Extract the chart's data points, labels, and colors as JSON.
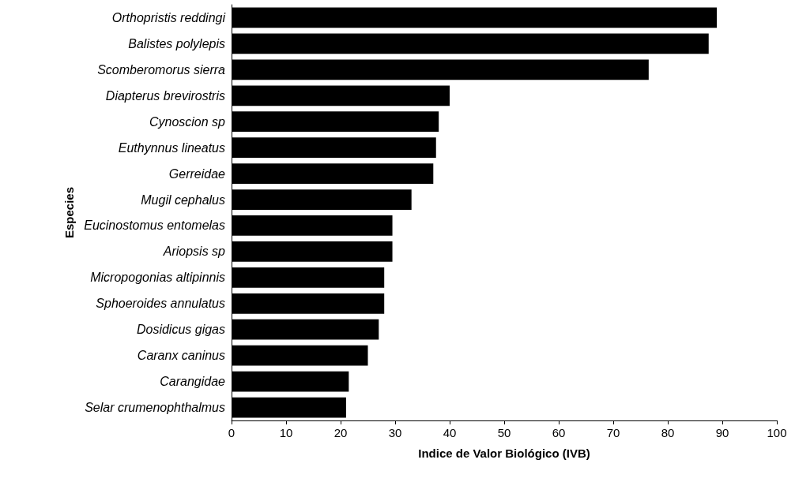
{
  "chart_data": {
    "type": "bar",
    "orientation": "horizontal",
    "xlabel": "Indice de Valor Biológico (IVB)",
    "ylabel": "Especies",
    "categories": [
      "Orthopristis reddingi",
      "Balistes polylepis",
      "Scomberomorus sierra",
      "Diapterus brevirostris",
      "Cynoscion sp",
      "Euthynnus lineatus",
      "Gerreidae",
      "Mugil cephalus",
      "Eucinostomus entomelas",
      "Ariopsis sp",
      "Micropogonias altipinnis",
      "Sphoeroides annulatus",
      "Dosidicus gigas",
      "Caranx caninus",
      "Carangidae",
      "Selar crumenophthalmus"
    ],
    "values": [
      89,
      87.5,
      76.5,
      40,
      38,
      37.5,
      37,
      33,
      29.5,
      29.5,
      28,
      28,
      27,
      25,
      21.5,
      21
    ],
    "color": "#000000",
    "xlim": [
      0,
      100
    ],
    "xticks": [
      0,
      10,
      20,
      30,
      40,
      50,
      60,
      70,
      80,
      90,
      100
    ],
    "grid": false
  }
}
